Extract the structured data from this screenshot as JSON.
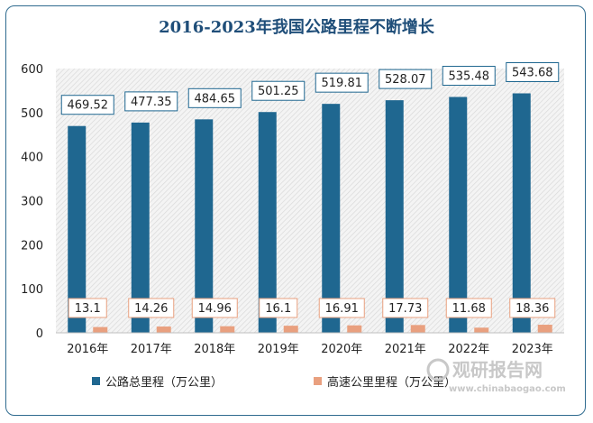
{
  "chart_data": {
    "type": "bar",
    "title": "2016-2023年我国公路里程不断增长",
    "categories": [
      "2016年",
      "2017年",
      "2018年",
      "2019年",
      "2020年",
      "2021年",
      "2022年",
      "2023年"
    ],
    "series": [
      {
        "name": "公路总里程（万公里）",
        "values": [
          469.52,
          477.35,
          484.65,
          501.25,
          519.81,
          528.07,
          535.48,
          543.68
        ],
        "color": "#1f6790"
      },
      {
        "name": "高速公里里程（万公里）",
        "values": [
          13.1,
          14.26,
          14.96,
          16.1,
          16.91,
          17.73,
          11.68,
          18.36
        ],
        "color": "#e9a07f"
      }
    ],
    "ylim": [
      0,
      600
    ],
    "yticks": [
      0,
      100,
      200,
      300,
      400,
      500,
      600
    ],
    "grid": false,
    "legend_position": "bottom-left"
  },
  "watermark": {
    "text": "观研报告网",
    "url": "www.chinabaogao.com"
  }
}
